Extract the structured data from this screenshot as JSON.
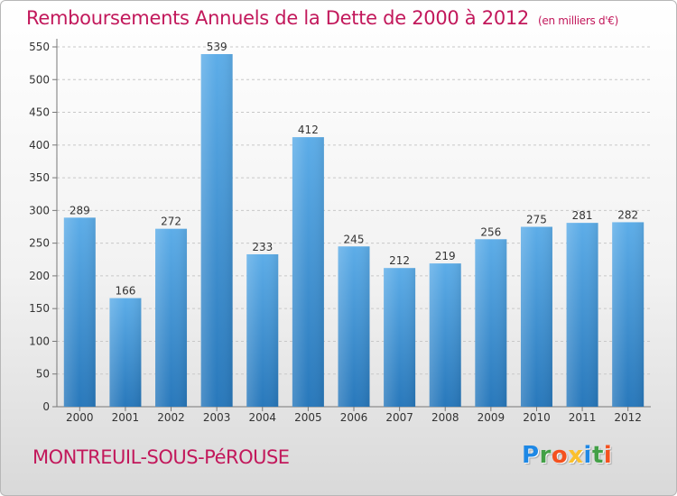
{
  "title": "Remboursements Annuels de la Dette de 2000 à 2012",
  "unit": "(en milliers d'€)",
  "commune": "MONTREUIL-SOUS-PéROUSE",
  "logo": {
    "text": "Proxiti",
    "letters": [
      {
        "ch": "P",
        "color": "#1e88e5"
      },
      {
        "ch": "r",
        "color": "#43a047"
      },
      {
        "ch": "o",
        "color": "#f4511e"
      },
      {
        "ch": "x",
        "color": "#fbc02d"
      },
      {
        "ch": "i",
        "color": "#1e88e5"
      },
      {
        "ch": "t",
        "color": "#43a047"
      },
      {
        "ch": "i",
        "color": "#f4511e"
      }
    ]
  },
  "colors": {
    "accent": "#c2185b",
    "bar_top": "#5dade8",
    "bar_bottom": "#2878bb"
  },
  "chart_data": {
    "type": "bar",
    "categories": [
      "2000",
      "2001",
      "2002",
      "2003",
      "2004",
      "2005",
      "2006",
      "2007",
      "2008",
      "2009",
      "2010",
      "2011",
      "2012"
    ],
    "values": [
      289,
      166,
      272,
      539,
      233,
      412,
      245,
      212,
      219,
      256,
      275,
      281,
      282
    ],
    "ylim": [
      0,
      550
    ],
    "yticks": [
      0,
      50,
      100,
      150,
      200,
      250,
      300,
      350,
      400,
      450,
      500,
      550
    ],
    "grid": "horizontal dashed",
    "legend": "none"
  }
}
